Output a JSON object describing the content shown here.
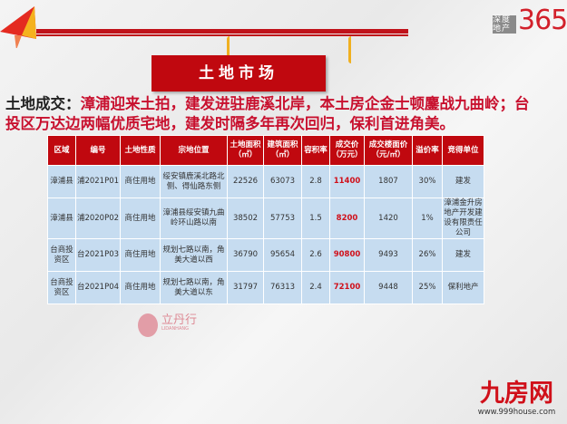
{
  "brand": {
    "logo_small": "深度地产",
    "logo_num": "365",
    "watermark": "立丹行",
    "watermark_sub": "LIDANHANG",
    "site_logo": "九房网",
    "site_url": "www.999house.com"
  },
  "banner_title": "土地市场",
  "headline": {
    "label": "土地成交：",
    "text": "漳浦迎来土拍，建发进驻鹿溪北岸，本土房企金士顿鏖战九曲岭；台投区万达边两幅优质宅地，建发时隔多年再次回归，保利首进角美。"
  },
  "table": {
    "headers": [
      "区域",
      "编号",
      "土地性质",
      "宗地位置",
      "土地面积（㎡）",
      "建筑面积（㎡）",
      "容积率",
      "成交价（万元）",
      "成交楼面价（元/㎡）",
      "溢价率",
      "竞得单位"
    ],
    "rows": [
      [
        "漳浦县",
        "浦2021P01",
        "商住用地",
        "绥安镇鹿溪北路北侧、得仙路东侧",
        "22526",
        "63073",
        "2.8",
        "11400",
        "1807",
        "30%",
        "建发"
      ],
      [
        "漳浦县",
        "浦2020P02",
        "商住用地",
        "漳浦县绥安镇九曲岭环山路以南",
        "38502",
        "57753",
        "1.5",
        "8200",
        "1420",
        "1%",
        "漳浦金升房地产开发建设有限责任公司"
      ],
      [
        "台商投资区",
        "台2021P03",
        "商住用地",
        "规划七路以南，角美大道以西",
        "36790",
        "95654",
        "2.6",
        "90800",
        "9493",
        "26%",
        "建发"
      ],
      [
        "台商投资区",
        "台2021P04",
        "商住用地",
        "规划七路以南，角美大道以东",
        "31797",
        "76313",
        "2.4",
        "72100",
        "9448",
        "25%",
        "保利地产"
      ]
    ]
  },
  "colors": {
    "accent": "#c0080f",
    "row_bg": "#c6dcf0",
    "price": "#d0101a"
  }
}
